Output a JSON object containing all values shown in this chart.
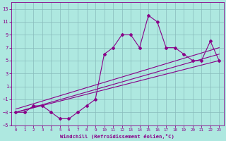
{
  "xlabel": "Windchill (Refroidissement éolien,°C)",
  "background_color": "#aee8e0",
  "plot_bg_color": "#aee8e0",
  "grid_color": "#88bbbb",
  "line_color": "#880088",
  "xlim": [
    -0.5,
    23.5
  ],
  "ylim": [
    -5,
    14
  ],
  "xticks": [
    0,
    1,
    2,
    3,
    4,
    5,
    6,
    7,
    8,
    9,
    10,
    11,
    12,
    13,
    14,
    15,
    16,
    17,
    18,
    19,
    20,
    21,
    22,
    23
  ],
  "yticks": [
    -5,
    -3,
    -1,
    1,
    3,
    5,
    7,
    9,
    11,
    13
  ],
  "series1_x": [
    0,
    1,
    2,
    3,
    4,
    5,
    6,
    7,
    8,
    9,
    10,
    11,
    12,
    13,
    14,
    15,
    16,
    17,
    18,
    19,
    20,
    21,
    22,
    23
  ],
  "series1_y": [
    -3,
    -3,
    -2,
    -2,
    -3,
    -4,
    -4,
    -3,
    -2,
    -1,
    6,
    7,
    9,
    9,
    7,
    12,
    11,
    7,
    7,
    6,
    5,
    5,
    8,
    5
  ],
  "series2_x": [
    0,
    23
  ],
  "series2_y": [
    -3,
    6
  ],
  "series3_x": [
    0,
    23
  ],
  "series3_y": [
    -3,
    5
  ],
  "series4_x": [
    0,
    23
  ],
  "series4_y": [
    -2.5,
    7
  ]
}
